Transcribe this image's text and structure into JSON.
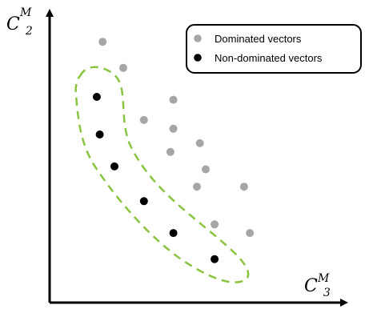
{
  "chart_data": {
    "type": "scatter",
    "xlabel": {
      "base": "C",
      "sub": "3",
      "sup": "M"
    },
    "ylabel": {
      "base": "C",
      "sub": "2",
      "sup": "M"
    },
    "xlim": [
      0,
      10
    ],
    "ylim": [
      0,
      10
    ],
    "grid": false,
    "legend_placement": "top-right",
    "series": [
      {
        "name": "Dominated vectors",
        "color": "#a6a6a6",
        "points": [
          {
            "x": 1.8,
            "y": 9.0
          },
          {
            "x": 2.5,
            "y": 8.1
          },
          {
            "x": 3.2,
            "y": 6.3
          },
          {
            "x": 4.2,
            "y": 7.0
          },
          {
            "x": 4.2,
            "y": 6.0
          },
          {
            "x": 4.1,
            "y": 5.2
          },
          {
            "x": 5.1,
            "y": 5.5
          },
          {
            "x": 5.3,
            "y": 4.6
          },
          {
            "x": 5.0,
            "y": 4.0
          },
          {
            "x": 5.6,
            "y": 2.7
          },
          {
            "x": 6.6,
            "y": 4.0
          },
          {
            "x": 6.8,
            "y": 2.4
          }
        ]
      },
      {
        "name": "Non-dominated vectors",
        "color": "#000000",
        "points": [
          {
            "x": 1.6,
            "y": 7.1
          },
          {
            "x": 1.7,
            "y": 5.8
          },
          {
            "x": 2.2,
            "y": 4.7
          },
          {
            "x": 3.2,
            "y": 3.5
          },
          {
            "x": 4.2,
            "y": 2.4
          },
          {
            "x": 5.6,
            "y": 1.5
          }
        ]
      }
    ],
    "pareto_outline_color": "#8ac43f"
  }
}
